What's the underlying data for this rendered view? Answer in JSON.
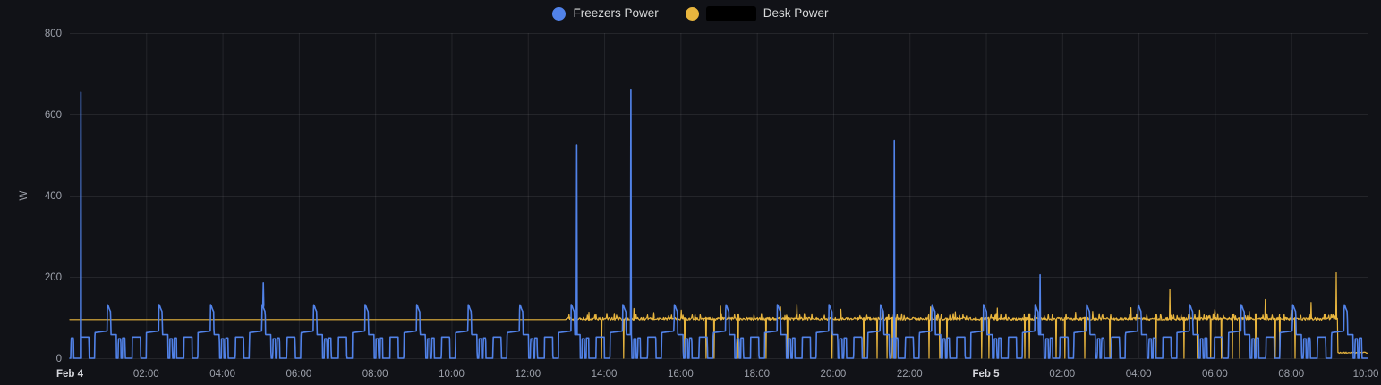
{
  "panel": {
    "background": "#111217",
    "legend": {
      "items": [
        {
          "label": "Freezers Power",
          "color": "#5182E8",
          "redacted_prefix": false
        },
        {
          "label": "Desk Power",
          "color": "#E8B53E",
          "redacted_prefix": true
        }
      ]
    }
  },
  "chart_data": {
    "type": "line",
    "title": "",
    "ylabel": "W",
    "ylim": [
      0,
      800
    ],
    "y_ticks": [
      0,
      200,
      400,
      600,
      800
    ],
    "x_unit": "hours since Feb 4 00:00",
    "x_range": [
      0,
      34
    ],
    "grid": true,
    "legend_position": "top-center",
    "x_ticks": [
      {
        "h": 0,
        "label": "Feb 4",
        "bold": true
      },
      {
        "h": 2,
        "label": "02:00"
      },
      {
        "h": 4,
        "label": "04:00"
      },
      {
        "h": 6,
        "label": "06:00"
      },
      {
        "h": 8,
        "label": "08:00"
      },
      {
        "h": 10,
        "label": "10:00"
      },
      {
        "h": 12,
        "label": "12:00"
      },
      {
        "h": 14,
        "label": "14:00"
      },
      {
        "h": 16,
        "label": "16:00"
      },
      {
        "h": 18,
        "label": "18:00"
      },
      {
        "h": 20,
        "label": "20:00"
      },
      {
        "h": 22,
        "label": "22:00"
      },
      {
        "h": 24,
        "label": "Feb 5",
        "bold": true
      },
      {
        "h": 26,
        "label": "02:00"
      },
      {
        "h": 28,
        "label": "04:00"
      },
      {
        "h": 30,
        "label": "06:00"
      },
      {
        "h": 32,
        "label": "08:00"
      },
      {
        "h": 34,
        "label": "10:00"
      }
    ],
    "series": [
      {
        "name": "Freezers Power",
        "color": "#5182E8",
        "line_width": 1.6,
        "pattern": {
          "type": "repeating_cycle",
          "period_min": 81,
          "phase_hour": 0.985,
          "steps_min_watts": [
            [
              0,
              132
            ],
            [
              1,
              130
            ],
            [
              3,
              121
            ],
            [
              5,
              114
            ],
            [
              5.6,
              58
            ],
            [
              14,
              58
            ],
            [
              14.3,
              0
            ],
            [
              17,
              0
            ],
            [
              17.3,
              48
            ],
            [
              21,
              48
            ],
            [
              21.3,
              0
            ],
            [
              23.6,
              0
            ],
            [
              23.9,
              50
            ],
            [
              27.6,
              50
            ],
            [
              27.9,
              0
            ],
            [
              39,
              0
            ],
            [
              39.3,
              52
            ],
            [
              52,
              52
            ],
            [
              52.3,
              0
            ],
            [
              61,
              0
            ],
            [
              61.3,
              63
            ],
            [
              80.7,
              67
            ],
            [
              81,
              132
            ]
          ]
        },
        "anomaly_spikes_hour_watts": [
          [
            0.29,
            655
          ],
          [
            5.07,
            185
          ],
          [
            13.28,
            525
          ],
          [
            14.7,
            660
          ],
          [
            21.6,
            535
          ],
          [
            25.42,
            205
          ]
        ]
      },
      {
        "name": "Desk Power",
        "redacted_prefix": true,
        "color": "#E8B53E",
        "line_width": 1.2,
        "segments": [
          {
            "from_h": 0,
            "to_h": 13.0,
            "type": "flat",
            "watts": 95
          },
          {
            "from_h": 13.0,
            "to_h": 33.22,
            "type": "noisy",
            "watts_mean": 97,
            "watts_jitter": 7
          },
          {
            "from_h": 33.25,
            "to_h": 34,
            "type": "flat",
            "watts": 12
          }
        ],
        "spikes_hour_watts": [
          [
            13.6,
            113
          ],
          [
            14.78,
            122
          ],
          [
            15.3,
            112
          ],
          [
            16.02,
            118
          ],
          [
            17.05,
            128
          ],
          [
            18.62,
            126
          ],
          [
            19.05,
            133
          ],
          [
            20.2,
            120
          ],
          [
            21.3,
            116
          ],
          [
            22.55,
            126
          ],
          [
            23.2,
            114
          ],
          [
            24.3,
            123
          ],
          [
            25.3,
            118
          ],
          [
            26.35,
            113
          ],
          [
            26.8,
            115
          ],
          [
            27.8,
            124
          ],
          [
            28.82,
            170
          ],
          [
            29.6,
            118
          ],
          [
            30.0,
            120
          ],
          [
            30.9,
            115
          ],
          [
            31.32,
            144
          ],
          [
            32.0,
            118
          ],
          [
            32.52,
            137
          ],
          [
            33.18,
            210
          ]
        ],
        "dropouts_hour": [
          13.93,
          14.51,
          16.11,
          16.67,
          16.88,
          17.51,
          18.24,
          18.8,
          19.97,
          20.8,
          21.15,
          21.41,
          21.55,
          21.64,
          22.51,
          22.79,
          22.98,
          23.89,
          24.08,
          25.02,
          25.14,
          25.84,
          26.07,
          26.59,
          27.25,
          28.46,
          29.19,
          29.54,
          29.89,
          30.17,
          30.46,
          30.65,
          31.07,
          31.58,
          31.7,
          32.1
        ]
      }
    ]
  }
}
